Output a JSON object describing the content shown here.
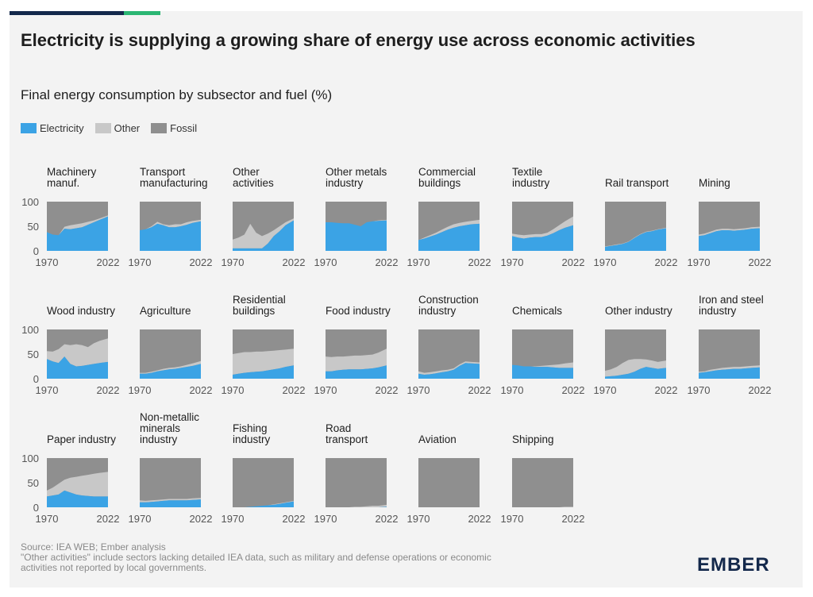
{
  "header": {
    "title": "Electricity is supplying a growing share of energy use across economic activities",
    "subtitle": "Final energy consumption by subsector and fuel (%)"
  },
  "legend": [
    {
      "label": "Electricity",
      "color": "#3ba3e5"
    },
    {
      "label": "Other",
      "color": "#c8c8c8"
    },
    {
      "label": "Fossil",
      "color": "#8f8f8f"
    }
  ],
  "footer": {
    "source": "Source: IEA WEB; Ember analysis",
    "note_line1": "\"Other activities\" include sectors lacking detailed IEA data, such as military and defense operations or economic",
    "note_line2": "activities not reported by local governments."
  },
  "logo": {
    "text": "EMBER"
  },
  "chart_data": {
    "type": "area",
    "layout": "small-multiples",
    "series_names": [
      "Electricity",
      "Other",
      "Fossil"
    ],
    "colors": {
      "Electricity": "#3ba3e5",
      "Other": "#c8c8c8",
      "Fossil": "#8f8f8f"
    },
    "x": [
      1970,
      1975,
      1980,
      1985,
      1990,
      1995,
      2000,
      2005,
      2010,
      2015,
      2022
    ],
    "x_tick_labels": [
      "1970",
      "2022"
    ],
    "y_ticks": [
      "100",
      "50",
      "0"
    ],
    "ylim": [
      0,
      100
    ],
    "panels": [
      {
        "title": [
          "Machinery",
          "manuf."
        ],
        "electricity": [
          38,
          33,
          32,
          45,
          44,
          46,
          48,
          53,
          58,
          63,
          70
        ],
        "other": [
          0,
          0,
          0,
          4,
          8,
          8,
          8,
          6,
          4,
          3,
          2
        ]
      },
      {
        "title": [
          "Transport",
          "manufacturing"
        ],
        "electricity": [
          42,
          44,
          48,
          55,
          52,
          48,
          48,
          50,
          53,
          57,
          60
        ],
        "other": [
          0,
          0,
          2,
          4,
          2,
          4,
          6,
          4,
          5,
          4,
          3
        ]
      },
      {
        "title": [
          "Other",
          "activities"
        ],
        "electricity": [
          5,
          5,
          5,
          5,
          5,
          5,
          15,
          30,
          40,
          52,
          62
        ],
        "other": [
          18,
          22,
          28,
          50,
          32,
          25,
          20,
          12,
          10,
          6,
          4
        ]
      },
      {
        "title": [
          "Other metals",
          "industry"
        ],
        "electricity": [
          58,
          58,
          57,
          56,
          56,
          53,
          50,
          58,
          60,
          61,
          62
        ],
        "other": [
          0,
          0,
          0,
          0,
          0,
          0,
          0,
          0,
          0,
          1,
          1
        ]
      },
      {
        "title": [
          "Commercial",
          "buildings"
        ],
        "electricity": [
          22,
          25,
          29,
          33,
          38,
          43,
          47,
          50,
          52,
          54,
          55
        ],
        "other": [
          0,
          2,
          3,
          4,
          5,
          6,
          7,
          7,
          7,
          7,
          8
        ]
      },
      {
        "title": [
          "Textile",
          "industry"
        ],
        "electricity": [
          30,
          27,
          25,
          27,
          28,
          28,
          31,
          36,
          42,
          47,
          52
        ],
        "other": [
          5,
          6,
          7,
          6,
          6,
          6,
          6,
          8,
          10,
          13,
          18
        ]
      },
      {
        "title": [
          "Rail transport"
        ],
        "electricity": [
          8,
          10,
          12,
          14,
          18,
          26,
          33,
          38,
          40,
          43,
          46
        ],
        "other": [
          1,
          1,
          1,
          1,
          1,
          1,
          1,
          1,
          1,
          1,
          1
        ]
      },
      {
        "title": [
          "Mining"
        ],
        "electricity": [
          30,
          32,
          36,
          40,
          42,
          42,
          41,
          42,
          43,
          45,
          46
        ],
        "other": [
          3,
          3,
          3,
          3,
          3,
          3,
          3,
          3,
          3,
          3,
          3
        ]
      },
      {
        "title": [
          "Wood industry"
        ],
        "electricity": [
          40,
          35,
          32,
          45,
          30,
          25,
          26,
          28,
          30,
          32,
          34
        ],
        "other": [
          16,
          20,
          28,
          25,
          38,
          45,
          42,
          36,
          42,
          45,
          48
        ]
      },
      {
        "title": [
          "Agriculture"
        ],
        "electricity": [
          10,
          10,
          12,
          15,
          17,
          19,
          20,
          22,
          24,
          26,
          30
        ],
        "other": [
          2,
          2,
          2,
          2,
          3,
          3,
          3,
          3,
          4,
          5,
          6
        ]
      },
      {
        "title": [
          "Residential",
          "buildings"
        ],
        "electricity": [
          8,
          10,
          12,
          13,
          14,
          15,
          17,
          19,
          21,
          24,
          27
        ],
        "other": [
          42,
          42,
          42,
          41,
          41,
          40,
          39,
          38,
          37,
          35,
          34
        ]
      },
      {
        "title": [
          "Food industry"
        ],
        "electricity": [
          15,
          15,
          17,
          18,
          19,
          19,
          19,
          20,
          21,
          23,
          27
        ],
        "other": [
          30,
          29,
          28,
          27,
          27,
          28,
          28,
          28,
          28,
          30,
          34
        ]
      },
      {
        "title": [
          "Construction",
          "industry"
        ],
        "electricity": [
          10,
          8,
          9,
          11,
          13,
          15,
          18,
          26,
          32,
          31,
          30
        ],
        "other": [
          5,
          4,
          4,
          4,
          4,
          3,
          3,
          3,
          3,
          3,
          3
        ]
      },
      {
        "title": [
          "Chemicals"
        ],
        "electricity": [
          28,
          27,
          25,
          25,
          24,
          24,
          24,
          23,
          22,
          22,
          22
        ],
        "other": [
          0,
          0,
          0,
          0,
          1,
          2,
          3,
          5,
          7,
          9,
          11
        ]
      },
      {
        "title": [
          "Other industry"
        ],
        "electricity": [
          4,
          5,
          6,
          8,
          10,
          14,
          20,
          24,
          22,
          20,
          22
        ],
        "other": [
          12,
          14,
          18,
          24,
          28,
          26,
          20,
          15,
          15,
          14,
          15
        ]
      },
      {
        "title": [
          "Iron and steel",
          "industry"
        ],
        "electricity": [
          12,
          13,
          15,
          17,
          18,
          19,
          20,
          20,
          21,
          22,
          23
        ],
        "other": [
          2,
          2,
          3,
          3,
          4,
          4,
          4,
          4,
          4,
          4,
          4
        ]
      },
      {
        "title": [
          "Paper industry"
        ],
        "electricity": [
          22,
          24,
          26,
          34,
          30,
          26,
          24,
          23,
          22,
          22,
          22
        ],
        "other": [
          12,
          16,
          22,
          22,
          30,
          36,
          40,
          43,
          46,
          48,
          50
        ]
      },
      {
        "title": [
          "Non-metallic",
          "minerals",
          "industry"
        ],
        "electricity": [
          10,
          10,
          11,
          12,
          13,
          14,
          14,
          14,
          14,
          15,
          16
        ],
        "other": [
          4,
          3,
          3,
          3,
          3,
          3,
          3,
          3,
          3,
          3,
          3
        ]
      },
      {
        "title": [
          "Fishing",
          "industry"
        ],
        "electricity": [
          0,
          0,
          0,
          1,
          2,
          3,
          4,
          5,
          7,
          9,
          12
        ],
        "other": [
          0,
          0,
          0,
          0,
          0,
          0,
          0,
          1,
          1,
          1,
          1
        ]
      },
      {
        "title": [
          "Road",
          "transport"
        ],
        "electricity": [
          0,
          0,
          0,
          0,
          0,
          0,
          0,
          0,
          0,
          0,
          1
        ],
        "other": [
          0,
          0,
          0,
          0,
          0,
          1,
          1,
          2,
          3,
          3,
          4
        ]
      },
      {
        "title": [
          "Aviation"
        ],
        "electricity": [
          0,
          0,
          0,
          0,
          0,
          0,
          0,
          0,
          0,
          0,
          0
        ],
        "other": [
          0,
          0,
          0,
          0,
          0,
          0,
          0,
          0,
          0,
          0,
          0
        ]
      },
      {
        "title": [
          "Shipping"
        ],
        "electricity": [
          0,
          0,
          0,
          0,
          0,
          0,
          0,
          0,
          0,
          0,
          0
        ],
        "other": [
          0,
          0,
          0,
          0,
          0,
          0,
          0,
          0,
          0,
          1,
          1
        ]
      }
    ]
  }
}
